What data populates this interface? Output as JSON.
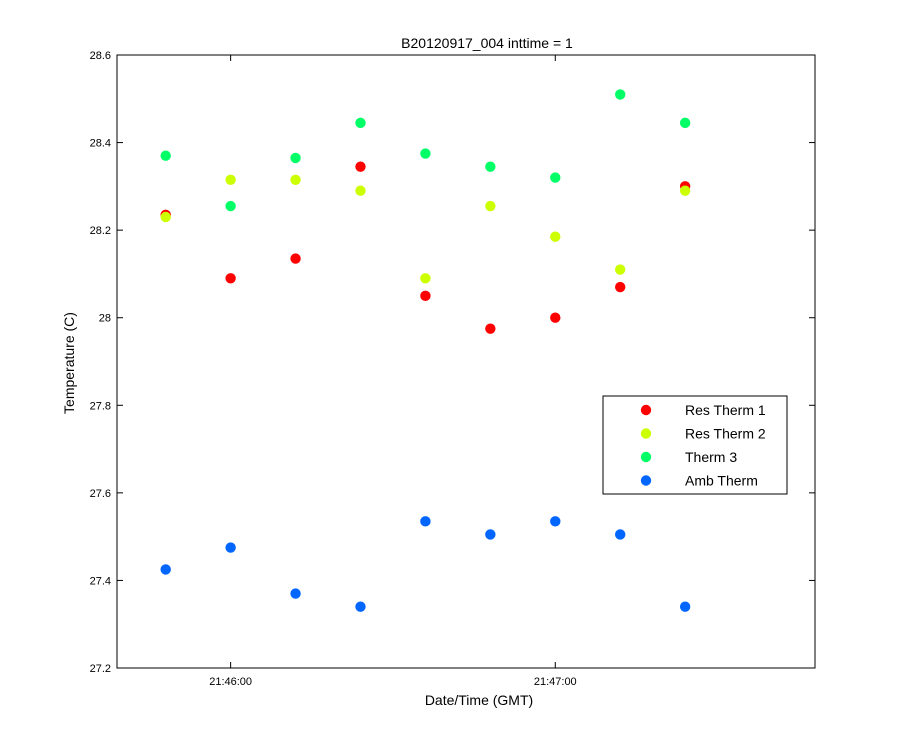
{
  "chart_data": {
    "type": "scatter",
    "title": "B20120917_004 inttime = 1",
    "xlabel": "Date/Time (GMT)",
    "ylabel": "Temperature (C)",
    "x_unit": "time (HH:MM:SS)",
    "xlim": [
      "21:45:39",
      "21:47:48"
    ],
    "ylim": [
      27.2,
      28.6
    ],
    "xticks": [
      "21:46:00",
      "21:47:00"
    ],
    "yticks": [
      "27.2",
      "27.4",
      "27.6",
      "27.8",
      "28",
      "28.2",
      "28.4",
      "28.6"
    ],
    "grid": false,
    "legend_position": "right-middle",
    "x": [
      "21:45:48",
      "21:46:00",
      "21:46:12",
      "21:46:24",
      "21:46:36",
      "21:46:48",
      "21:47:00",
      "21:47:12",
      "21:47:24"
    ],
    "series": [
      {
        "name": "Res Therm 1",
        "color": "#ff0000",
        "values": [
          28.235,
          28.09,
          28.135,
          28.345,
          28.05,
          27.975,
          28.0,
          28.07,
          28.3
        ]
      },
      {
        "name": "Res Therm 2",
        "color": "#ccff00",
        "values": [
          28.23,
          28.315,
          28.315,
          28.29,
          28.09,
          28.255,
          28.185,
          28.11,
          28.29
        ]
      },
      {
        "name": "Therm 3",
        "color": "#00ff66",
        "values": [
          28.37,
          28.255,
          28.365,
          28.445,
          28.375,
          28.345,
          28.32,
          28.51,
          28.445
        ]
      },
      {
        "name": "Amb Therm",
        "color": "#0066ff",
        "values": [
          27.425,
          27.475,
          27.37,
          27.34,
          27.535,
          27.505,
          27.535,
          27.505,
          27.34
        ]
      }
    ]
  }
}
